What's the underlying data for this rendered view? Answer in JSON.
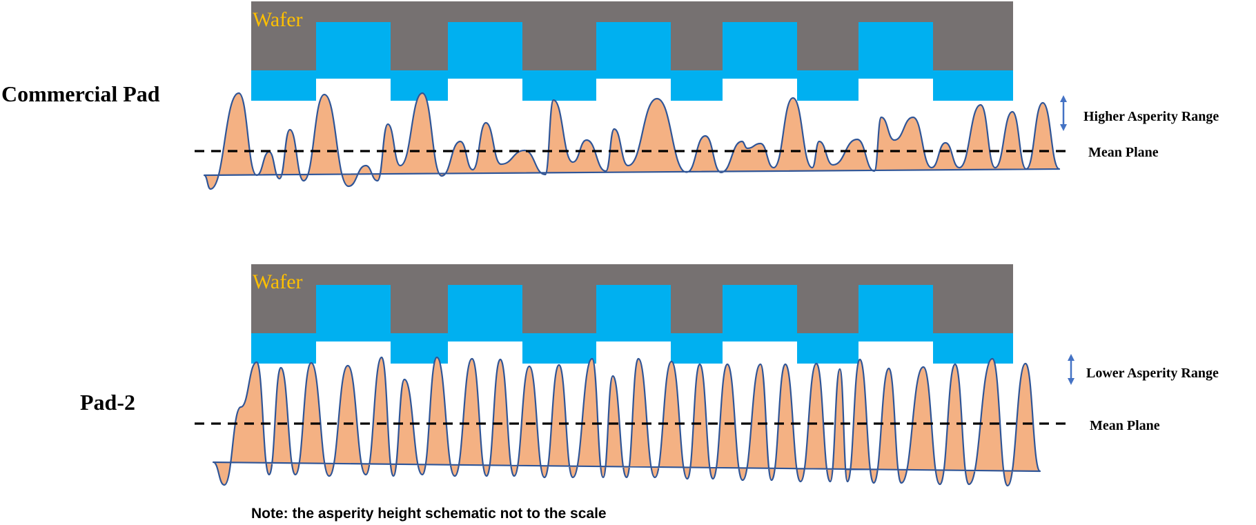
{
  "colors": {
    "wafer": "#767171",
    "copper": "#00b0f0",
    "wafer_label": "#ffc000",
    "asperity_fill": "#f4b183",
    "asperity_stroke": "#2f5597",
    "arrow": "#4472c4",
    "mean_plane": "#000000"
  },
  "panels": [
    {
      "pad_label": "Commercial Pad",
      "wafer_label": "Wafer",
      "range_label": "Higher Asperity Range",
      "mean_plane_label": "Mean Plane"
    },
    {
      "pad_label": "Pad-2",
      "wafer_label": "Wafer",
      "range_label": "Lower Asperity Range",
      "mean_plane_label": "Mean Plane"
    }
  ],
  "note": "Note: the asperity height schematic not to the scale"
}
